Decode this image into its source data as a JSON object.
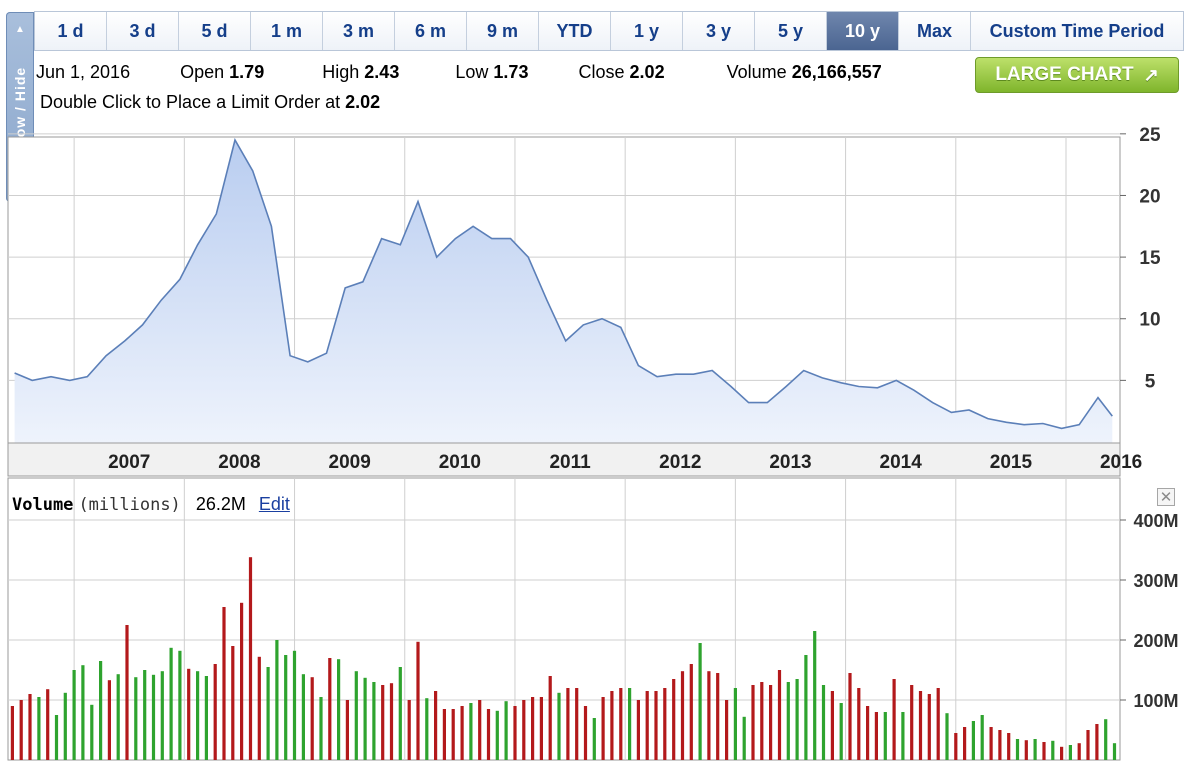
{
  "side_tab": {
    "label": "Show / Hide"
  },
  "ranges": [
    {
      "label": "1 d",
      "active": false
    },
    {
      "label": "3 d",
      "active": false
    },
    {
      "label": "5 d",
      "active": false
    },
    {
      "label": "1 m",
      "active": false
    },
    {
      "label": "3 m",
      "active": false
    },
    {
      "label": "6 m",
      "active": false
    },
    {
      "label": "9 m",
      "active": false
    },
    {
      "label": "YTD",
      "active": false
    },
    {
      "label": "1 y",
      "active": false
    },
    {
      "label": "3 y",
      "active": false
    },
    {
      "label": "5 y",
      "active": false
    },
    {
      "label": "10 y",
      "active": true
    },
    {
      "label": "Max",
      "active": false
    }
  ],
  "custom_range_label": "Custom Time Period",
  "quote": {
    "date": "Jun 1, 2016",
    "open_label": "Open",
    "open": "1.79",
    "high_label": "High",
    "high": "2.43",
    "low_label": "Low",
    "low": "1.73",
    "close_label": "Close",
    "close": "2.02",
    "volume_label": "Volume",
    "volume": "26,166,557",
    "limit_prefix": "Double Click to Place a Limit Order at",
    "limit_price": "2.02"
  },
  "large_chart": {
    "label": "LARGE CHART",
    "icon": "arrow-up-right-icon"
  },
  "volume_panel": {
    "title": "Volume",
    "unit": "(millions)",
    "value": "26.2M",
    "edit_label": "Edit",
    "close_icon": "close-icon",
    "close_glyph": "✕"
  },
  "colors": {
    "price_line": "#5b7fb8",
    "price_fill_top": "#b9cdf0",
    "price_fill_bottom": "#eef3fc",
    "volume_up": "#2ea32e",
    "volume_down": "#b3191b",
    "grid": "#cfcfcf",
    "active_tab": "#5a7299"
  },
  "chart_data": [
    {
      "type": "area",
      "x_labels": [
        "2007",
        "2008",
        "2009",
        "2010",
        "2011",
        "2012",
        "2013",
        "2014",
        "2015",
        "2016"
      ],
      "y_ticks": [
        "5",
        "10",
        "15",
        "20",
        "25"
      ],
      "ylim": [
        0,
        25
      ],
      "grid": true,
      "series": [
        {
          "x": [
            2006.46,
            2006.62,
            2006.79,
            2006.96,
            2007.12,
            2007.29,
            2007.46,
            2007.62,
            2007.79,
            2007.96,
            2008.12,
            2008.29,
            2008.46,
            2008.62,
            2008.79,
            2008.96,
            2009.12,
            2009.29,
            2009.46,
            2009.62,
            2009.79,
            2009.96,
            2010.12,
            2010.29,
            2010.46,
            2010.62,
            2010.79,
            2010.96,
            2011.12,
            2011.29,
            2011.46,
            2011.62,
            2011.79,
            2011.96,
            2012.12,
            2012.29,
            2012.46,
            2012.62,
            2012.79,
            2012.96,
            2013.12,
            2013.29,
            2013.46,
            2013.62,
            2013.79,
            2013.96,
            2014.12,
            2014.29,
            2014.46,
            2014.62,
            2014.79,
            2014.96,
            2015.12,
            2015.29,
            2015.46,
            2015.62,
            2015.79,
            2015.96,
            2016.12,
            2016.29,
            2016.42
          ],
          "y": [
            5.6,
            5.0,
            5.3,
            5.0,
            5.3,
            7.0,
            8.2,
            9.5,
            11.5,
            13.2,
            16.0,
            18.5,
            24.5,
            22.0,
            17.5,
            7.0,
            6.5,
            7.2,
            12.5,
            13.0,
            16.5,
            16.0,
            19.5,
            15.0,
            16.5,
            17.5,
            16.5,
            16.5,
            15.0,
            11.5,
            8.2,
            9.5,
            10.0,
            9.3,
            6.2,
            5.3,
            5.5,
            5.5,
            5.8,
            4.5,
            3.2,
            3.2,
            4.5,
            5.8,
            5.2,
            4.8,
            4.5,
            4.4,
            5.0,
            4.2,
            3.2,
            2.4,
            2.6,
            1.9,
            1.6,
            1.4,
            1.5,
            1.1,
            1.4,
            3.6,
            2.1
          ]
        }
      ]
    },
    {
      "type": "bar",
      "y_ticks": [
        "100M",
        "200M",
        "300M",
        "400M"
      ],
      "ylim": [
        0,
        400
      ],
      "grid": true,
      "series": [
        {
          "name": "Volume",
          "x": [
            2006.44,
            2006.52,
            2006.6,
            2006.68,
            2006.76,
            2006.84,
            2006.92,
            2007.0,
            2007.08,
            2007.16,
            2007.24,
            2007.32,
            2007.4,
            2007.48,
            2007.56,
            2007.64,
            2007.72,
            2007.8,
            2007.88,
            2007.96,
            2008.04,
            2008.12,
            2008.2,
            2008.28,
            2008.36,
            2008.44,
            2008.52,
            2008.6,
            2008.68,
            2008.76,
            2008.84,
            2008.92,
            2009.0,
            2009.08,
            2009.16,
            2009.24,
            2009.32,
            2009.4,
            2009.48,
            2009.56,
            2009.64,
            2009.72,
            2009.8,
            2009.88,
            2009.96,
            2010.04,
            2010.12,
            2010.2,
            2010.28,
            2010.36,
            2010.44,
            2010.52,
            2010.6,
            2010.68,
            2010.76,
            2010.84,
            2010.92,
            2011.0,
            2011.08,
            2011.16,
            2011.24,
            2011.32,
            2011.4,
            2011.48,
            2011.56,
            2011.64,
            2011.72,
            2011.8,
            2011.88,
            2011.96,
            2012.04,
            2012.12,
            2012.2,
            2012.28,
            2012.36,
            2012.44,
            2012.52,
            2012.6,
            2012.68,
            2012.76,
            2012.84,
            2012.92,
            2013.0,
            2013.08,
            2013.16,
            2013.24,
            2013.32,
            2013.4,
            2013.48,
            2013.56,
            2013.64,
            2013.72,
            2013.8,
            2013.88,
            2013.96,
            2014.04,
            2014.12,
            2014.2,
            2014.28,
            2014.36,
            2014.44,
            2014.52,
            2014.6,
            2014.68,
            2014.76,
            2014.84,
            2014.92,
            2015.0,
            2015.08,
            2015.16,
            2015.24,
            2015.32,
            2015.4,
            2015.48,
            2015.56,
            2015.64,
            2015.72,
            2015.8,
            2015.88,
            2015.96,
            2016.04,
            2016.12,
            2016.2,
            2016.28,
            2016.36,
            2016.44
          ],
          "values": [
            90,
            100,
            110,
            105,
            118,
            75,
            112,
            150,
            158,
            92,
            165,
            133,
            143,
            225,
            138,
            150,
            142,
            148,
            187,
            182,
            152,
            148,
            140,
            160,
            255,
            190,
            262,
            338,
            172,
            155,
            200,
            175,
            182,
            143,
            138,
            105,
            170,
            168,
            100,
            148,
            137,
            130,
            125,
            128,
            155,
            100,
            197,
            103,
            115,
            85,
            85,
            90,
            95,
            100,
            85,
            82,
            98,
            90,
            100,
            105,
            105,
            140,
            112,
            120,
            120,
            90,
            70,
            105,
            115,
            120,
            120,
            100,
            115,
            115,
            120,
            135,
            148,
            160,
            195,
            148,
            145,
            100,
            120,
            72,
            125,
            130,
            125,
            150,
            130,
            135,
            175,
            215,
            125,
            115,
            95,
            145,
            120,
            90,
            80,
            80,
            135,
            80,
            125,
            115,
            110,
            120,
            78,
            45,
            55,
            65,
            75,
            55,
            50,
            45,
            35,
            33,
            35,
            30,
            32,
            22,
            25,
            28,
            50,
            60,
            68,
            28
          ],
          "direction": [
            "down",
            "down",
            "down",
            "up",
            "down",
            "up",
            "up",
            "up",
            "up",
            "up",
            "up",
            "down",
            "up",
            "down",
            "up",
            "up",
            "up",
            "up",
            "up",
            "up",
            "down",
            "up",
            "up",
            "down",
            "down",
            "down",
            "down",
            "down",
            "down",
            "up",
            "up",
            "up",
            "up",
            "up",
            "down",
            "up",
            "down",
            "up",
            "down",
            "up",
            "up",
            "up",
            "down",
            "down",
            "up",
            "down",
            "down",
            "up",
            "down",
            "down",
            "down",
            "down",
            "up",
            "down",
            "down",
            "up",
            "up",
            "down",
            "down",
            "down",
            "down",
            "down",
            "up",
            "down",
            "down",
            "down",
            "up",
            "down",
            "down",
            "down",
            "up",
            "down",
            "down",
            "down",
            "down",
            "down",
            "down",
            "down",
            "up",
            "down",
            "down",
            "down",
            "up",
            "up",
            "down",
            "down",
            "down",
            "down",
            "up",
            "up",
            "up",
            "up",
            "up",
            "down",
            "up",
            "down",
            "down",
            "down",
            "down",
            "up",
            "down",
            "up",
            "down",
            "down",
            "down",
            "down",
            "up",
            "down",
            "down",
            "up",
            "up",
            "down",
            "down",
            "down",
            "up",
            "down",
            "up",
            "down",
            "up",
            "down",
            "up",
            "down",
            "down",
            "down",
            "up",
            "up"
          ]
        }
      ]
    }
  ]
}
